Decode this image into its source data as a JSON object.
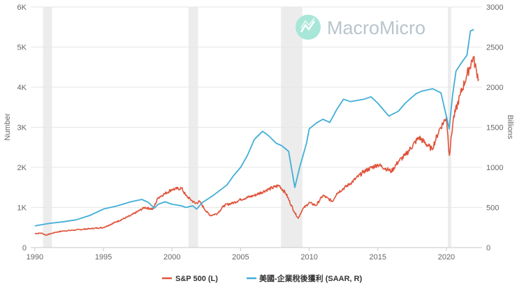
{
  "watermark": {
    "brand": "MacroMicro",
    "icon": "macromicro-logo-icon",
    "color": "#a8e6d8"
  },
  "chart_data": {
    "type": "line",
    "title": "",
    "xlabel": "",
    "ylabel_left": "Number",
    "ylabel_right": "Billions",
    "x_range": [
      1989.7,
      2022.6
    ],
    "x_ticks": [
      1990,
      1995,
      2000,
      2005,
      2010,
      2015,
      2020
    ],
    "y_left": {
      "range": [
        0,
        6000
      ],
      "ticks": [
        0,
        1000,
        2000,
        3000,
        4000,
        5000,
        6000
      ],
      "labels": [
        "0",
        "1K",
        "2K",
        "3K",
        "4K",
        "5K",
        "6K"
      ]
    },
    "y_right": {
      "range": [
        0,
        3000
      ],
      "ticks": [
        0,
        500,
        1000,
        1500,
        2000,
        2500,
        3000
      ],
      "labels": [
        "0",
        "500",
        "1000",
        "1500",
        "2000",
        "2500",
        "3000"
      ]
    },
    "recessions": [
      [
        1990.6,
        1991.25
      ],
      [
        2001.2,
        2001.9
      ],
      [
        2007.95,
        2009.5
      ],
      [
        2020.1,
        2020.35
      ]
    ],
    "series": [
      {
        "name": "S&P 500 (L)",
        "axis": "left",
        "color": "#e0533a",
        "points": [
          [
            1990.0,
            350
          ],
          [
            1990.5,
            360
          ],
          [
            1990.8,
            310
          ],
          [
            1991.5,
            380
          ],
          [
            1992.0,
            410
          ],
          [
            1993.0,
            440
          ],
          [
            1994.0,
            470
          ],
          [
            1995.0,
            500
          ],
          [
            1996.0,
            650
          ],
          [
            1997.0,
            800
          ],
          [
            1998.0,
            1000
          ],
          [
            1998.6,
            960
          ],
          [
            1999.0,
            1250
          ],
          [
            1999.5,
            1350
          ],
          [
            2000.0,
            1450
          ],
          [
            2000.7,
            1480
          ],
          [
            2001.0,
            1300
          ],
          [
            2001.7,
            1100
          ],
          [
            2002.0,
            1150
          ],
          [
            2002.5,
            900
          ],
          [
            2002.8,
            800
          ],
          [
            2003.3,
            850
          ],
          [
            2003.8,
            1050
          ],
          [
            2004.5,
            1120
          ],
          [
            2005.0,
            1200
          ],
          [
            2006.0,
            1300
          ],
          [
            2007.0,
            1450
          ],
          [
            2007.8,
            1550
          ],
          [
            2008.3,
            1350
          ],
          [
            2008.9,
            900
          ],
          [
            2009.2,
            730
          ],
          [
            2009.5,
            950
          ],
          [
            2010.0,
            1120
          ],
          [
            2010.5,
            1050
          ],
          [
            2011.0,
            1300
          ],
          [
            2011.7,
            1150
          ],
          [
            2012.0,
            1350
          ],
          [
            2013.0,
            1600
          ],
          [
            2014.0,
            1900
          ],
          [
            2015.0,
            2070
          ],
          [
            2015.7,
            1950
          ],
          [
            2016.0,
            1900
          ],
          [
            2016.5,
            2150
          ],
          [
            2017.0,
            2300
          ],
          [
            2018.0,
            2750
          ],
          [
            2018.95,
            2450
          ],
          [
            2019.5,
            2950
          ],
          [
            2020.0,
            3250
          ],
          [
            2020.22,
            2300
          ],
          [
            2020.5,
            3200
          ],
          [
            2021.0,
            3800
          ],
          [
            2021.5,
            4300
          ],
          [
            2021.95,
            4750
          ],
          [
            2022.2,
            4400
          ],
          [
            2022.35,
            4200
          ]
        ]
      },
      {
        "name": "美國-企業稅後獲利 (SAAR, R)",
        "axis": "right",
        "color": "#41aed7",
        "points": [
          [
            1990.0,
            270
          ],
          [
            1991.0,
            300
          ],
          [
            1992.0,
            320
          ],
          [
            1993.0,
            345
          ],
          [
            1994.0,
            400
          ],
          [
            1995.0,
            480
          ],
          [
            1996.0,
            520
          ],
          [
            1997.0,
            570
          ],
          [
            1997.8,
            600
          ],
          [
            1998.3,
            560
          ],
          [
            1998.7,
            490
          ],
          [
            1999.0,
            540
          ],
          [
            1999.5,
            570
          ],
          [
            2000.0,
            540
          ],
          [
            2000.7,
            520
          ],
          [
            2001.0,
            500
          ],
          [
            2001.5,
            520
          ],
          [
            2001.8,
            480
          ],
          [
            2002.2,
            560
          ],
          [
            2003.0,
            650
          ],
          [
            2004.0,
            780
          ],
          [
            2004.5,
            900
          ],
          [
            2005.0,
            1000
          ],
          [
            2005.5,
            1150
          ],
          [
            2006.0,
            1350
          ],
          [
            2006.6,
            1450
          ],
          [
            2007.0,
            1400
          ],
          [
            2007.6,
            1300
          ],
          [
            2008.0,
            1270
          ],
          [
            2008.5,
            1200
          ],
          [
            2008.95,
            750
          ],
          [
            2009.3,
            1000
          ],
          [
            2009.8,
            1300
          ],
          [
            2010.0,
            1480
          ],
          [
            2010.5,
            1550
          ],
          [
            2011.0,
            1600
          ],
          [
            2011.5,
            1560
          ],
          [
            2012.0,
            1720
          ],
          [
            2012.5,
            1850
          ],
          [
            2013.0,
            1820
          ],
          [
            2014.0,
            1850
          ],
          [
            2014.5,
            1880
          ],
          [
            2015.0,
            1800
          ],
          [
            2015.8,
            1640
          ],
          [
            2016.5,
            1700
          ],
          [
            2017.0,
            1800
          ],
          [
            2017.8,
            1920
          ],
          [
            2018.2,
            1950
          ],
          [
            2019.0,
            1980
          ],
          [
            2019.6,
            1930
          ],
          [
            2020.05,
            1600
          ],
          [
            2020.2,
            1480
          ],
          [
            2020.45,
            1900
          ],
          [
            2020.7,
            2200
          ],
          [
            2021.0,
            2280
          ],
          [
            2021.5,
            2400
          ],
          [
            2021.75,
            2700
          ],
          [
            2022.0,
            2720
          ]
        ]
      }
    ],
    "legend_position": "bottom-center"
  }
}
